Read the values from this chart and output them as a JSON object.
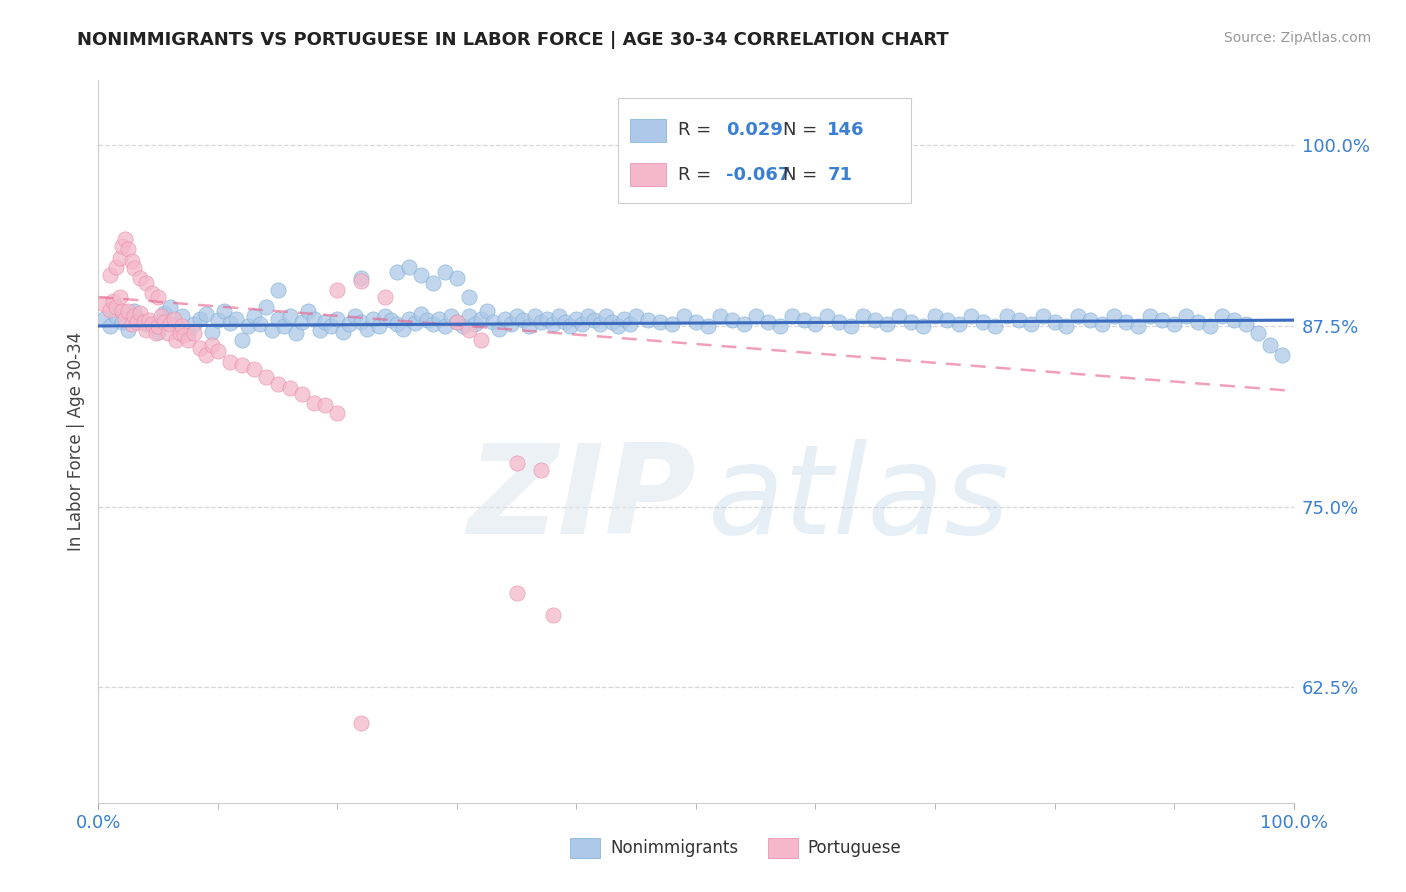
{
  "title": "NONIMMIGRANTS VS PORTUGUESE IN LABOR FORCE | AGE 30-34 CORRELATION CHART",
  "source": "Source: ZipAtlas.com",
  "ylabel": "In Labor Force | Age 30-34",
  "legend_label_1": "Nonimmigrants",
  "legend_label_2": "Portuguese",
  "R1": 0.029,
  "N1": 146,
  "R2": -0.067,
  "N2": 71,
  "color1": "#adc8e8",
  "color1_edge": "#7aaed4",
  "color1_line": "#3a6bbf",
  "color2": "#f4b8ca",
  "color2_edge": "#e88aaa",
  "color2_line": "#e8608a",
  "xmin": 0.0,
  "xmax": 1.0,
  "ymin": 0.545,
  "ymax": 1.045,
  "yticks": [
    0.625,
    0.75,
    0.875,
    1.0
  ],
  "ytick_labels": [
    "62.5%",
    "75.0%",
    "87.5%",
    "100.0%"
  ],
  "grid_color": "#cccccc",
  "background_color": "#ffffff",
  "blue_slope": 0.004,
  "blue_intercept": 0.875,
  "pink_slope": -0.065,
  "pink_intercept": 0.895,
  "blue_dots": [
    [
      0.005,
      0.88
    ],
    [
      0.01,
      0.875
    ],
    [
      0.015,
      0.882
    ],
    [
      0.02,
      0.878
    ],
    [
      0.025,
      0.872
    ],
    [
      0.03,
      0.885
    ],
    [
      0.035,
      0.879
    ],
    [
      0.04,
      0.876
    ],
    [
      0.05,
      0.871
    ],
    [
      0.055,
      0.884
    ],
    [
      0.06,
      0.888
    ],
    [
      0.065,
      0.876
    ],
    [
      0.07,
      0.882
    ],
    [
      0.075,
      0.87
    ],
    [
      0.08,
      0.876
    ],
    [
      0.085,
      0.88
    ],
    [
      0.09,
      0.883
    ],
    [
      0.095,
      0.871
    ],
    [
      0.1,
      0.879
    ],
    [
      0.105,
      0.885
    ],
    [
      0.11,
      0.877
    ],
    [
      0.115,
      0.88
    ],
    [
      0.12,
      0.865
    ],
    [
      0.125,
      0.875
    ],
    [
      0.13,
      0.882
    ],
    [
      0.135,
      0.876
    ],
    [
      0.14,
      0.888
    ],
    [
      0.145,
      0.872
    ],
    [
      0.15,
      0.88
    ],
    [
      0.155,
      0.875
    ],
    [
      0.16,
      0.882
    ],
    [
      0.165,
      0.87
    ],
    [
      0.17,
      0.878
    ],
    [
      0.175,
      0.885
    ],
    [
      0.18,
      0.88
    ],
    [
      0.185,
      0.872
    ],
    [
      0.19,
      0.878
    ],
    [
      0.195,
      0.875
    ],
    [
      0.2,
      0.88
    ],
    [
      0.205,
      0.871
    ],
    [
      0.21,
      0.876
    ],
    [
      0.215,
      0.882
    ],
    [
      0.22,
      0.878
    ],
    [
      0.225,
      0.873
    ],
    [
      0.23,
      0.88
    ],
    [
      0.235,
      0.875
    ],
    [
      0.24,
      0.882
    ],
    [
      0.245,
      0.879
    ],
    [
      0.25,
      0.876
    ],
    [
      0.255,
      0.873
    ],
    [
      0.26,
      0.88
    ],
    [
      0.265,
      0.877
    ],
    [
      0.27,
      0.883
    ],
    [
      0.275,
      0.879
    ],
    [
      0.28,
      0.876
    ],
    [
      0.285,
      0.88
    ],
    [
      0.29,
      0.875
    ],
    [
      0.295,
      0.882
    ],
    [
      0.3,
      0.878
    ],
    [
      0.305,
      0.875
    ],
    [
      0.31,
      0.882
    ],
    [
      0.315,
      0.876
    ],
    [
      0.32,
      0.88
    ],
    [
      0.325,
      0.885
    ],
    [
      0.33,
      0.878
    ],
    [
      0.335,
      0.873
    ],
    [
      0.34,
      0.88
    ],
    [
      0.345,
      0.876
    ],
    [
      0.35,
      0.882
    ],
    [
      0.355,
      0.879
    ],
    [
      0.36,
      0.875
    ],
    [
      0.365,
      0.882
    ],
    [
      0.37,
      0.878
    ],
    [
      0.375,
      0.88
    ],
    [
      0.38,
      0.876
    ],
    [
      0.385,
      0.882
    ],
    [
      0.39,
      0.878
    ],
    [
      0.395,
      0.875
    ],
    [
      0.4,
      0.88
    ],
    [
      0.405,
      0.876
    ],
    [
      0.41,
      0.882
    ],
    [
      0.415,
      0.879
    ],
    [
      0.42,
      0.876
    ],
    [
      0.425,
      0.882
    ],
    [
      0.43,
      0.878
    ],
    [
      0.435,
      0.875
    ],
    [
      0.44,
      0.88
    ],
    [
      0.445,
      0.876
    ],
    [
      0.45,
      0.882
    ],
    [
      0.46,
      0.879
    ],
    [
      0.47,
      0.878
    ],
    [
      0.48,
      0.876
    ],
    [
      0.49,
      0.882
    ],
    [
      0.5,
      0.878
    ],
    [
      0.51,
      0.875
    ],
    [
      0.52,
      0.882
    ],
    [
      0.53,
      0.879
    ],
    [
      0.54,
      0.876
    ],
    [
      0.55,
      0.882
    ],
    [
      0.56,
      0.878
    ],
    [
      0.57,
      0.875
    ],
    [
      0.58,
      0.882
    ],
    [
      0.59,
      0.879
    ],
    [
      0.6,
      0.876
    ],
    [
      0.61,
      0.882
    ],
    [
      0.62,
      0.878
    ],
    [
      0.63,
      0.875
    ],
    [
      0.64,
      0.882
    ],
    [
      0.65,
      0.879
    ],
    [
      0.66,
      0.876
    ],
    [
      0.67,
      0.882
    ],
    [
      0.68,
      0.878
    ],
    [
      0.69,
      0.875
    ],
    [
      0.7,
      0.882
    ],
    [
      0.71,
      0.879
    ],
    [
      0.72,
      0.876
    ],
    [
      0.73,
      0.882
    ],
    [
      0.74,
      0.878
    ],
    [
      0.75,
      0.875
    ],
    [
      0.76,
      0.882
    ],
    [
      0.77,
      0.879
    ],
    [
      0.78,
      0.876
    ],
    [
      0.79,
      0.882
    ],
    [
      0.8,
      0.878
    ],
    [
      0.81,
      0.875
    ],
    [
      0.82,
      0.882
    ],
    [
      0.83,
      0.879
    ],
    [
      0.84,
      0.876
    ],
    [
      0.85,
      0.882
    ],
    [
      0.86,
      0.878
    ],
    [
      0.87,
      0.875
    ],
    [
      0.88,
      0.882
    ],
    [
      0.89,
      0.879
    ],
    [
      0.9,
      0.876
    ],
    [
      0.91,
      0.882
    ],
    [
      0.92,
      0.878
    ],
    [
      0.93,
      0.875
    ],
    [
      0.94,
      0.882
    ],
    [
      0.95,
      0.879
    ],
    [
      0.96,
      0.876
    ],
    [
      0.97,
      0.87
    ],
    [
      0.98,
      0.862
    ],
    [
      0.99,
      0.855
    ],
    [
      0.15,
      0.9
    ],
    [
      0.22,
      0.908
    ],
    [
      0.25,
      0.912
    ],
    [
      0.26,
      0.916
    ],
    [
      0.27,
      0.91
    ],
    [
      0.28,
      0.905
    ],
    [
      0.29,
      0.912
    ],
    [
      0.3,
      0.908
    ],
    [
      0.31,
      0.895
    ]
  ],
  "pink_dots": [
    [
      0.005,
      0.89
    ],
    [
      0.01,
      0.886
    ],
    [
      0.012,
      0.892
    ],
    [
      0.015,
      0.888
    ],
    [
      0.018,
      0.895
    ],
    [
      0.02,
      0.885
    ],
    [
      0.022,
      0.88
    ],
    [
      0.025,
      0.885
    ],
    [
      0.028,
      0.876
    ],
    [
      0.03,
      0.882
    ],
    [
      0.032,
      0.878
    ],
    [
      0.035,
      0.884
    ],
    [
      0.038,
      0.878
    ],
    [
      0.04,
      0.872
    ],
    [
      0.042,
      0.879
    ],
    [
      0.045,
      0.876
    ],
    [
      0.048,
      0.87
    ],
    [
      0.05,
      0.875
    ],
    [
      0.052,
      0.882
    ],
    [
      0.055,
      0.878
    ],
    [
      0.058,
      0.87
    ],
    [
      0.06,
      0.876
    ],
    [
      0.063,
      0.88
    ],
    [
      0.065,
      0.865
    ],
    [
      0.068,
      0.87
    ],
    [
      0.07,
      0.875
    ],
    [
      0.072,
      0.869
    ],
    [
      0.075,
      0.865
    ],
    [
      0.08,
      0.87
    ],
    [
      0.085,
      0.86
    ],
    [
      0.09,
      0.855
    ],
    [
      0.095,
      0.862
    ],
    [
      0.1,
      0.858
    ],
    [
      0.11,
      0.85
    ],
    [
      0.12,
      0.848
    ],
    [
      0.13,
      0.845
    ],
    [
      0.14,
      0.84
    ],
    [
      0.15,
      0.835
    ],
    [
      0.16,
      0.832
    ],
    [
      0.17,
      0.828
    ],
    [
      0.18,
      0.822
    ],
    [
      0.19,
      0.82
    ],
    [
      0.2,
      0.815
    ],
    [
      0.01,
      0.91
    ],
    [
      0.015,
      0.916
    ],
    [
      0.018,
      0.922
    ],
    [
      0.02,
      0.93
    ],
    [
      0.022,
      0.935
    ],
    [
      0.025,
      0.928
    ],
    [
      0.028,
      0.92
    ],
    [
      0.03,
      0.915
    ],
    [
      0.035,
      0.908
    ],
    [
      0.04,
      0.905
    ],
    [
      0.045,
      0.898
    ],
    [
      0.05,
      0.895
    ],
    [
      0.2,
      0.9
    ],
    [
      0.22,
      0.906
    ],
    [
      0.24,
      0.895
    ],
    [
      0.3,
      0.878
    ],
    [
      0.31,
      0.872
    ],
    [
      0.32,
      0.865
    ],
    [
      0.35,
      0.78
    ],
    [
      0.37,
      0.775
    ],
    [
      0.35,
      0.69
    ],
    [
      0.38,
      0.675
    ],
    [
      0.22,
      0.6
    ]
  ]
}
